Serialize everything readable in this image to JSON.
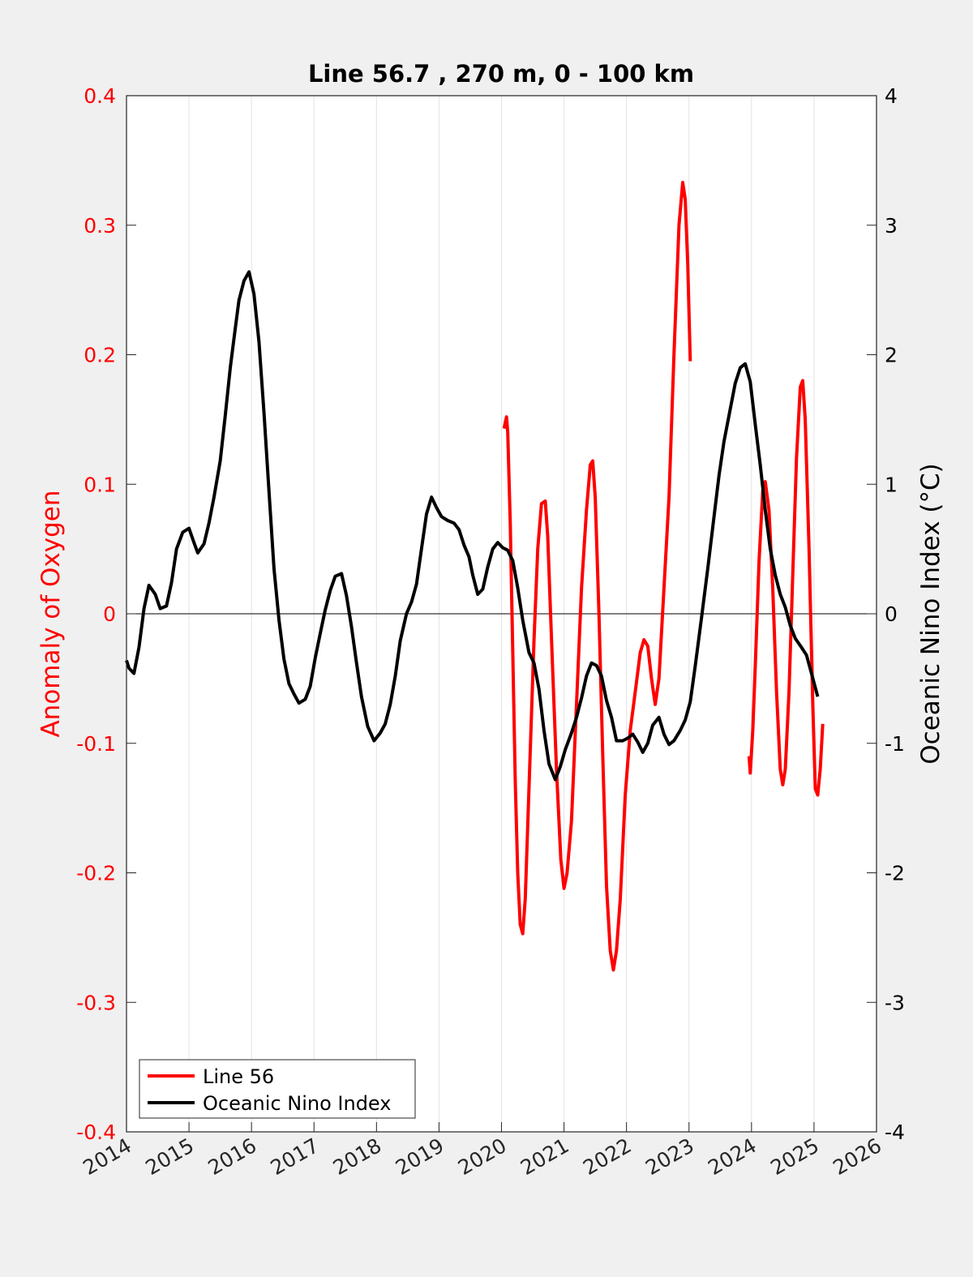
{
  "colors": {
    "left_axis": "#ff0000",
    "right_axis": "#000000",
    "background": "#f0f0f0",
    "plot_background": "#ffffff",
    "grid": "#e3e3e3"
  },
  "chart_data": {
    "type": "line",
    "title": "Line 56.7 , 270 m, 0 - 100 km",
    "xlabel": "",
    "ylabel_left": "Anomaly of Oxygen",
    "ylabel_right": "Oceanic Nino Index (°C)",
    "xlim": [
      2014,
      2026
    ],
    "ylim_left": [
      -0.4,
      0.4
    ],
    "ylim_right": [
      -4,
      4
    ],
    "grid": "vertical",
    "legend_position": "bottom-left",
    "x_ticks": [
      "2014",
      "2015",
      "2016",
      "2017",
      "2018",
      "2019",
      "2020",
      "2021",
      "2022",
      "2023",
      "2024",
      "2025",
      "2026"
    ],
    "y_ticks_left": [
      "-0.4",
      "-0.3",
      "-0.2",
      "-0.1",
      "0",
      "0.1",
      "0.2",
      "0.3",
      "0.4"
    ],
    "y_ticks_right": [
      "-4",
      "-3",
      "-2",
      "-1",
      "0",
      "1",
      "2",
      "3",
      "4"
    ],
    "series": [
      {
        "name": "Line 56",
        "axis": "left",
        "color": "#ff0000",
        "segments": [
          [
            [
              2020.04,
              0.143
            ],
            [
              2020.08,
              0.152
            ],
            [
              2020.1,
              0.14
            ],
            [
              2020.14,
              0.07
            ],
            [
              2020.18,
              -0.03
            ],
            [
              2020.22,
              -0.13
            ],
            [
              2020.26,
              -0.2
            ],
            [
              2020.3,
              -0.24
            ],
            [
              2020.34,
              -0.247
            ],
            [
              2020.38,
              -0.22
            ],
            [
              2020.45,
              -0.12
            ],
            [
              2020.52,
              -0.02
            ],
            [
              2020.58,
              0.05
            ],
            [
              2020.64,
              0.085
            ],
            [
              2020.7,
              0.087
            ],
            [
              2020.74,
              0.06
            ],
            [
              2020.8,
              -0.02
            ],
            [
              2020.88,
              -0.12
            ],
            [
              2020.95,
              -0.19
            ],
            [
              2021.0,
              -0.212
            ],
            [
              2021.05,
              -0.2
            ],
            [
              2021.12,
              -0.16
            ],
            [
              2021.2,
              -0.07
            ],
            [
              2021.28,
              0.02
            ],
            [
              2021.36,
              0.08
            ],
            [
              2021.42,
              0.115
            ],
            [
              2021.46,
              0.118
            ],
            [
              2021.5,
              0.09
            ],
            [
              2021.56,
              0.0
            ],
            [
              2021.62,
              -0.11
            ],
            [
              2021.68,
              -0.21
            ],
            [
              2021.74,
              -0.26
            ],
            [
              2021.79,
              -0.275
            ],
            [
              2021.84,
              -0.26
            ],
            [
              2021.9,
              -0.22
            ],
            [
              2021.98,
              -0.14
            ],
            [
              2022.06,
              -0.09
            ],
            [
              2022.14,
              -0.06
            ],
            [
              2022.22,
              -0.03
            ],
            [
              2022.28,
              -0.02
            ],
            [
              2022.34,
              -0.025
            ],
            [
              2022.4,
              -0.05
            ],
            [
              2022.46,
              -0.07
            ],
            [
              2022.52,
              -0.05
            ],
            [
              2022.6,
              0.02
            ],
            [
              2022.68,
              0.09
            ],
            [
              2022.76,
              0.2
            ],
            [
              2022.84,
              0.3
            ],
            [
              2022.9,
              0.333
            ],
            [
              2022.94,
              0.32
            ],
            [
              2022.98,
              0.27
            ],
            [
              2023.02,
              0.195
            ]
          ],
          [
            [
              2023.96,
              -0.11
            ],
            [
              2023.98,
              -0.123
            ],
            [
              2024.02,
              -0.09
            ],
            [
              2024.06,
              -0.04
            ],
            [
              2024.12,
              0.04
            ],
            [
              2024.18,
              0.095
            ],
            [
              2024.22,
              0.102
            ],
            [
              2024.28,
              0.08
            ],
            [
              2024.34,
              0.02
            ],
            [
              2024.4,
              -0.06
            ],
            [
              2024.46,
              -0.12
            ],
            [
              2024.5,
              -0.132
            ],
            [
              2024.54,
              -0.12
            ],
            [
              2024.6,
              -0.06
            ],
            [
              2024.66,
              0.03
            ],
            [
              2024.72,
              0.12
            ],
            [
              2024.78,
              0.175
            ],
            [
              2024.82,
              0.18
            ],
            [
              2024.86,
              0.15
            ],
            [
              2024.92,
              0.05
            ],
            [
              2024.98,
              -0.07
            ],
            [
              2025.02,
              -0.135
            ],
            [
              2025.06,
              -0.14
            ],
            [
              2025.1,
              -0.12
            ],
            [
              2025.14,
              -0.085
            ]
          ]
        ]
      },
      {
        "name": "Oceanic Nino Index",
        "axis": "right",
        "color": "#000000",
        "segments": [
          [
            [
              2014.0,
              -0.36
            ],
            [
              2014.04,
              -0.42
            ],
            [
              2014.12,
              -0.46
            ],
            [
              2014.2,
              -0.26
            ],
            [
              2014.28,
              0.04
            ],
            [
              2014.36,
              0.22
            ],
            [
              2014.46,
              0.15
            ],
            [
              2014.54,
              0.04
            ],
            [
              2014.64,
              0.06
            ],
            [
              2014.72,
              0.24
            ],
            [
              2014.8,
              0.5
            ],
            [
              2014.9,
              0.63
            ],
            [
              2015.0,
              0.66
            ],
            [
              2015.08,
              0.55
            ],
            [
              2015.14,
              0.47
            ],
            [
              2015.24,
              0.54
            ],
            [
              2015.32,
              0.7
            ],
            [
              2015.4,
              0.9
            ],
            [
              2015.5,
              1.18
            ],
            [
              2015.58,
              1.53
            ],
            [
              2015.66,
              1.9
            ],
            [
              2015.74,
              2.2
            ],
            [
              2015.8,
              2.42
            ],
            [
              2015.88,
              2.57
            ],
            [
              2015.96,
              2.64
            ],
            [
              2016.04,
              2.47
            ],
            [
              2016.12,
              2.1
            ],
            [
              2016.2,
              1.55
            ],
            [
              2016.28,
              0.95
            ],
            [
              2016.36,
              0.35
            ],
            [
              2016.44,
              -0.05
            ],
            [
              2016.52,
              -0.35
            ],
            [
              2016.6,
              -0.54
            ],
            [
              2016.68,
              -0.62
            ],
            [
              2016.76,
              -0.69
            ],
            [
              2016.86,
              -0.66
            ],
            [
              2016.94,
              -0.56
            ],
            [
              2017.02,
              -0.34
            ],
            [
              2017.1,
              -0.15
            ],
            [
              2017.18,
              0.03
            ],
            [
              2017.26,
              0.18
            ],
            [
              2017.34,
              0.29
            ],
            [
              2017.44,
              0.31
            ],
            [
              2017.52,
              0.14
            ],
            [
              2017.6,
              -0.1
            ],
            [
              2017.68,
              -0.38
            ],
            [
              2017.76,
              -0.64
            ],
            [
              2017.86,
              -0.87
            ],
            [
              2017.96,
              -0.98
            ],
            [
              2018.06,
              -0.92
            ],
            [
              2018.14,
              -0.85
            ],
            [
              2018.22,
              -0.7
            ],
            [
              2018.3,
              -0.48
            ],
            [
              2018.38,
              -0.21
            ],
            [
              2018.48,
              0.0
            ],
            [
              2018.56,
              0.09
            ],
            [
              2018.64,
              0.23
            ],
            [
              2018.72,
              0.5
            ],
            [
              2018.8,
              0.77
            ],
            [
              2018.88,
              0.9
            ],
            [
              2018.96,
              0.82
            ],
            [
              2019.04,
              0.75
            ],
            [
              2019.14,
              0.72
            ],
            [
              2019.24,
              0.7
            ],
            [
              2019.32,
              0.65
            ],
            [
              2019.4,
              0.53
            ],
            [
              2019.48,
              0.44
            ],
            [
              2019.54,
              0.3
            ],
            [
              2019.62,
              0.15
            ],
            [
              2019.7,
              0.19
            ],
            [
              2019.78,
              0.36
            ],
            [
              2019.86,
              0.5
            ],
            [
              2019.94,
              0.55
            ],
            [
              2020.02,
              0.51
            ],
            [
              2020.1,
              0.49
            ],
            [
              2020.18,
              0.41
            ],
            [
              2020.26,
              0.2
            ],
            [
              2020.34,
              -0.05
            ],
            [
              2020.44,
              -0.3
            ],
            [
              2020.52,
              -0.38
            ],
            [
              2020.6,
              -0.58
            ],
            [
              2020.68,
              -0.9
            ],
            [
              2020.76,
              -1.16
            ],
            [
              2020.86,
              -1.28
            ],
            [
              2020.94,
              -1.18
            ],
            [
              2021.02,
              -1.05
            ],
            [
              2021.12,
              -0.92
            ],
            [
              2021.2,
              -0.8
            ],
            [
              2021.28,
              -0.65
            ],
            [
              2021.36,
              -0.48
            ],
            [
              2021.44,
              -0.38
            ],
            [
              2021.52,
              -0.4
            ],
            [
              2021.6,
              -0.48
            ],
            [
              2021.68,
              -0.67
            ],
            [
              2021.76,
              -0.8
            ],
            [
              2021.84,
              -0.98
            ],
            [
              2021.94,
              -0.98
            ],
            [
              2022.02,
              -0.96
            ],
            [
              2022.1,
              -0.93
            ],
            [
              2022.18,
              -0.99
            ],
            [
              2022.26,
              -1.07
            ],
            [
              2022.34,
              -1.0
            ],
            [
              2022.42,
              -0.86
            ],
            [
              2022.52,
              -0.8
            ],
            [
              2022.6,
              -0.93
            ],
            [
              2022.68,
              -1.01
            ],
            [
              2022.76,
              -0.98
            ],
            [
              2022.86,
              -0.9
            ],
            [
              2022.94,
              -0.82
            ],
            [
              2023.02,
              -0.68
            ],
            [
              2023.1,
              -0.4
            ],
            [
              2023.2,
              -0.03
            ],
            [
              2023.3,
              0.35
            ],
            [
              2023.4,
              0.75
            ],
            [
              2023.48,
              1.07
            ],
            [
              2023.56,
              1.33
            ],
            [
              2023.66,
              1.58
            ],
            [
              2023.74,
              1.78
            ],
            [
              2023.82,
              1.9
            ],
            [
              2023.9,
              1.93
            ],
            [
              2023.98,
              1.79
            ],
            [
              2024.06,
              1.46
            ],
            [
              2024.14,
              1.15
            ],
            [
              2024.22,
              0.8
            ],
            [
              2024.3,
              0.5
            ],
            [
              2024.38,
              0.3
            ],
            [
              2024.46,
              0.15
            ],
            [
              2024.54,
              0.05
            ],
            [
              2024.62,
              -0.09
            ],
            [
              2024.7,
              -0.19
            ],
            [
              2024.8,
              -0.26
            ],
            [
              2024.88,
              -0.32
            ],
            [
              2024.96,
              -0.46
            ],
            [
              2025.06,
              -0.64
            ]
          ]
        ]
      }
    ]
  }
}
